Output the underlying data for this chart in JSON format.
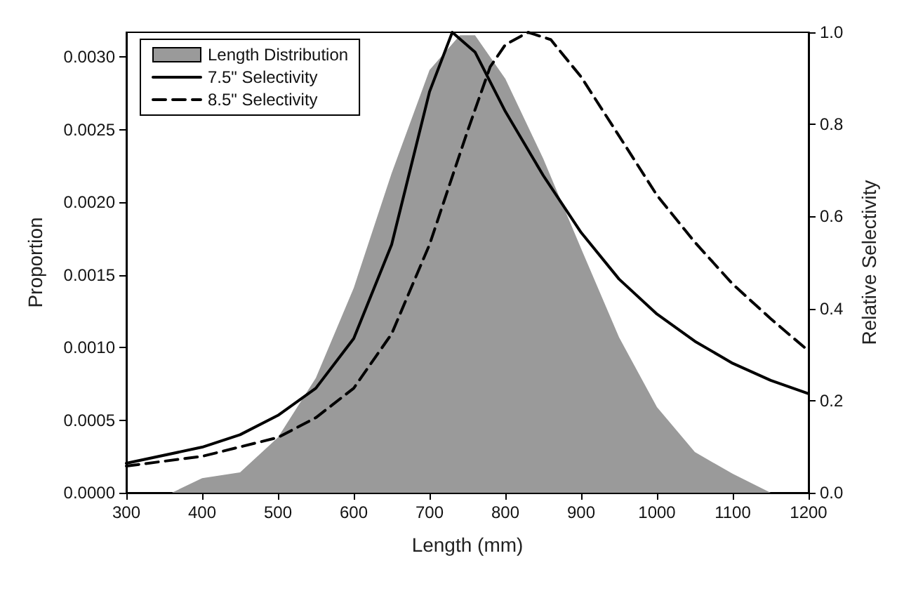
{
  "chart_data": {
    "type": "line",
    "xlabel": "Length (mm)",
    "ylabel": "Proportion",
    "y2label": "Relative Selectivity",
    "xlim": [
      300,
      1200
    ],
    "xticks": [
      300,
      400,
      500,
      600,
      700,
      800,
      900,
      1000,
      1100,
      1200
    ],
    "ylim": [
      0,
      0.00317
    ],
    "yticks": [
      {
        "value": 0,
        "label": "0.0000"
      },
      0.0005,
      {
        "value": 0.001,
        "label": "0.0010"
      },
      0.0015,
      {
        "value": 0.002,
        "label": "0.0020"
      },
      0.0025,
      {
        "value": 0.003,
        "label": "0.0030"
      }
    ],
    "y2lim": [
      0,
      1
    ],
    "y2ticks": [
      {
        "value": 0,
        "label": "0.0"
      },
      0.2,
      0.4,
      0.6,
      0.8,
      {
        "value": 1,
        "label": "1.0"
      }
    ],
    "legend": "top left",
    "grid": false,
    "marker": "none",
    "series": [
      {
        "name": "Length Distribution",
        "type": "area",
        "color": "#9a9a9a",
        "x": [
          360,
          400,
          450,
          500,
          550,
          600,
          650,
          700,
          740,
          760,
          800,
          850,
          900,
          950,
          1000,
          1050,
          1100,
          1150,
          1200
        ],
        "values": [
          0,
          0.0001,
          0.00014,
          0.00038,
          0.00079,
          0.00141,
          0.0022,
          0.00291,
          0.00315,
          0.00315,
          0.00285,
          0.0023,
          0.00168,
          0.00107,
          0.00059,
          0.00028,
          0.00013,
          0,
          0
        ]
      },
      {
        "name": "7.5\" Selectivity",
        "axis": "y2",
        "color": "#000000",
        "line_style": "solid",
        "x": [
          300,
          400,
          450,
          500,
          550,
          600,
          650,
          700,
          730,
          760,
          800,
          850,
          900,
          950,
          1000,
          1050,
          1100,
          1150,
          1200
        ],
        "values": [
          0.064,
          0.099,
          0.126,
          0.168,
          0.227,
          0.335,
          0.539,
          0.871,
          1.0,
          0.957,
          0.828,
          0.689,
          0.565,
          0.464,
          0.388,
          0.329,
          0.281,
          0.244,
          0.215
        ]
      },
      {
        "name": "8.5\" Selectivity",
        "axis": "y2",
        "color": "#000000",
        "line_style": "dashed",
        "x": [
          300,
          400,
          500,
          550,
          600,
          650,
          700,
          750,
          780,
          800,
          830,
          860,
          900,
          950,
          1000,
          1050,
          1100,
          1150,
          1200
        ],
        "values": [
          0.058,
          0.079,
          0.12,
          0.163,
          0.227,
          0.345,
          0.539,
          0.785,
          0.925,
          0.973,
          1.0,
          0.984,
          0.903,
          0.775,
          0.646,
          0.544,
          0.453,
          0.378,
          0.308
        ]
      }
    ]
  }
}
